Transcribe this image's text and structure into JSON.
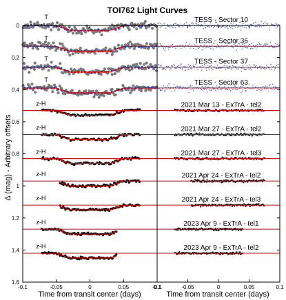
{
  "chart_data": {
    "type": "scatter",
    "title": "TOI762 Light Curves",
    "ylabel": "Δ (mag) - Arbitrary offsets",
    "ylim": [
      0,
      1.6
    ],
    "y_inverted": true,
    "y_ticks": [
      "0",
      "0.2",
      "0.4",
      "0.6",
      "0.8",
      "1",
      "1.2",
      "1.4",
      "1.6"
    ],
    "grid": false,
    "panels": [
      {
        "xlabel": "Time from transit center (days)",
        "xlim": [
          -0.1,
          0.1
        ],
        "x_ticks": [
          "-0.1",
          "-0.05",
          "0",
          "0.05",
          "0.1"
        ],
        "curves": [
          {
            "band": "T",
            "offset": 0.0,
            "x_range": [
              -0.1,
              0.1
            ],
            "depth": 0.03,
            "style": "tess"
          },
          {
            "band": "T",
            "offset": 0.13,
            "x_range": [
              -0.1,
              0.1
            ],
            "depth": 0.03,
            "style": "tess"
          },
          {
            "band": "T",
            "offset": 0.26,
            "x_range": [
              -0.1,
              0.1
            ],
            "depth": 0.03,
            "style": "tess"
          },
          {
            "band": "T",
            "offset": 0.39,
            "x_range": [
              -0.1,
              0.1
            ],
            "depth": 0.03,
            "style": "tess"
          },
          {
            "band": "z-H",
            "offset": 0.53,
            "x_range": [
              -0.072,
              0.075
            ],
            "depth": 0.03,
            "style": "ground"
          },
          {
            "band": "z-H",
            "offset": 0.68,
            "x_range": [
              -0.072,
              0.075
            ],
            "depth": 0.03,
            "style": "ground"
          },
          {
            "band": "z-H",
            "offset": 0.83,
            "x_range": [
              -0.072,
              0.075
            ],
            "depth": 0.03,
            "style": "ground"
          },
          {
            "band": "z-H",
            "offset": 0.97,
            "x_range": [
              -0.045,
              0.075
            ],
            "depth": 0.03,
            "style": "ground"
          },
          {
            "band": "z-H",
            "offset": 1.12,
            "x_range": [
              -0.045,
              0.075
            ],
            "depth": 0.03,
            "style": "ground"
          },
          {
            "band": "z-H",
            "offset": 1.27,
            "x_range": [
              -0.072,
              0.04
            ],
            "depth": 0.03,
            "style": "ground"
          },
          {
            "band": "z-H",
            "offset": 1.42,
            "x_range": [
              -0.072,
              0.04
            ],
            "depth": 0.03,
            "style": "ground"
          }
        ]
      },
      {
        "xlabel": "Time from transit center (days)",
        "xlim": [
          -0.1,
          0.1
        ],
        "x_ticks": [
          "-0.1",
          "-0.05",
          "0",
          "0.05",
          "0.1"
        ],
        "curves": [
          {
            "label": "TESS - Sector 10",
            "offset": 0.0,
            "x_range": [
              -0.1,
              0.1
            ],
            "style": "resid-tess"
          },
          {
            "label": "TESS - Sector 36",
            "offset": 0.13,
            "x_range": [
              -0.1,
              0.1
            ],
            "style": "resid-tess"
          },
          {
            "label": "TESS - Sector 37",
            "offset": 0.26,
            "x_range": [
              -0.1,
              0.1
            ],
            "style": "resid-tess"
          },
          {
            "label": "TESS - Sector 63",
            "offset": 0.39,
            "x_range": [
              -0.1,
              0.1
            ],
            "style": "resid-tess"
          },
          {
            "label": "2021 Mar 13 - ExTrA - tel2",
            "offset": 0.53,
            "x_range": [
              -0.072,
              0.075
            ],
            "style": "resid-ground"
          },
          {
            "label": "2021 Mar 27 - ExTrA - tel2",
            "offset": 0.68,
            "x_range": [
              -0.072,
              0.075
            ],
            "style": "resid-ground"
          },
          {
            "label": "2021 Mar 27 - ExTrA - tel3",
            "offset": 0.83,
            "x_range": [
              -0.072,
              0.075
            ],
            "style": "resid-ground"
          },
          {
            "label": "2021 Apr 24 - ExTrA - tel2",
            "offset": 0.97,
            "x_range": [
              -0.045,
              0.075
            ],
            "style": "resid-ground"
          },
          {
            "label": "2021 Apr 24 - ExTrA - tel3",
            "offset": 1.12,
            "x_range": [
              -0.045,
              0.075
            ],
            "style": "resid-ground"
          },
          {
            "label": "2023 Apr 9 - ExTrA - tel1",
            "offset": 1.27,
            "x_range": [
              -0.072,
              0.04
            ],
            "style": "resid-ground"
          },
          {
            "label": "2023 Apr 9 - ExTrA - tel2",
            "offset": 1.42,
            "x_range": [
              -0.072,
              0.04
            ],
            "style": "resid-ground"
          }
        ]
      }
    ],
    "colors": {
      "model": "#e00000",
      "binned": "#1f3fd0",
      "tess_points": "#7a7a7a",
      "ground_points": "#000000",
      "resid_tess_points": "#6070c0"
    }
  }
}
